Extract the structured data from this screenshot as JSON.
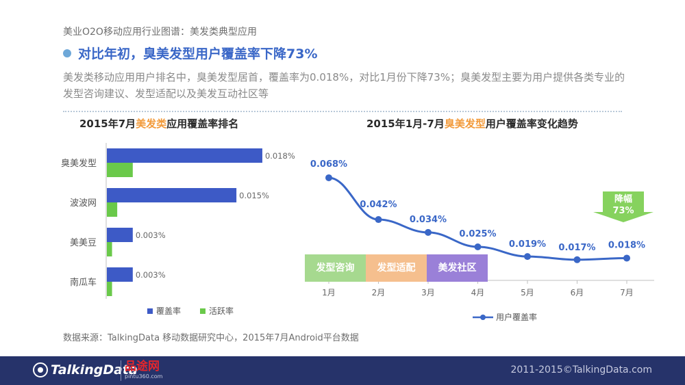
{
  "breadcrumb": "美业O2O移动应用行业图谱：美发类典型应用",
  "headline": "对比年初，臭美发型用户覆盖率下降73%",
  "description": "美发类移动应用用户排名中，臭美发型居首，覆盖率为0.018%，对比1月份下降73%；臭美发型主要为用户提供各类专业的发型咨询建议、发型适配以及美发互动社区等",
  "left_title": {
    "prefix": "2015年7月",
    "highlight": "美发类",
    "suffix": "应用覆盖率排名"
  },
  "right_title": {
    "prefix": "2015年1月-7月",
    "highlight": "臭美发型",
    "suffix": "用户覆盖率变化趋势"
  },
  "colors": {
    "coverage": "#3d5ac6",
    "activity": "#6ac94a",
    "line": "#3a67c7",
    "highlight": "#f29a3a"
  },
  "chart_data": [
    {
      "type": "bar",
      "orientation": "horizontal",
      "title": "2015年7月美发类应用覆盖率排名",
      "categories": [
        "臭美发型",
        "波波网",
        "美美豆",
        "南瓜车"
      ],
      "series": [
        {
          "name": "覆盖率",
          "values": [
            0.018,
            0.015,
            0.003,
            0.003
          ],
          "labels": [
            "0.018%",
            "0.015%",
            "0.003%",
            "0.003%"
          ]
        },
        {
          "name": "活跃率",
          "values": [
            0.003,
            0.0012,
            0.0006,
            0.0006
          ]
        }
      ],
      "xlim": [
        0,
        0.023
      ],
      "legend": "bottom"
    },
    {
      "type": "line",
      "title": "2015年1月-7月臭美发型用户覆盖率变化趋势",
      "categories": [
        "1月",
        "2月",
        "3月",
        "4月",
        "5月",
        "6月",
        "7月"
      ],
      "series": [
        {
          "name": "用户覆盖率",
          "values": [
            0.068,
            0.042,
            0.034,
            0.025,
            0.019,
            0.017,
            0.018
          ],
          "labels": [
            "0.068%",
            "0.042%",
            "0.034%",
            "0.025%",
            "0.019%",
            "0.017%",
            "0.018%"
          ]
        }
      ],
      "ylim": [
        0.005,
        0.085
      ],
      "legend": "bottom"
    }
  ],
  "feature_tags": [
    {
      "label": "发型咨询",
      "color": "#a6d98f"
    },
    {
      "label": "发型适配",
      "color": "#f5bf8e"
    },
    {
      "label": "美发社区",
      "color": "#9a80d8"
    }
  ],
  "decline_badge": {
    "line1": "降幅",
    "line2": "73%",
    "color": "#86d25e"
  },
  "bar_legend": [
    "覆盖率",
    "活跃率"
  ],
  "line_legend": "用户覆盖率",
  "source": "数据来源：TalkingData 移动数据研究中心，2015年7月Android平台数据",
  "footer": {
    "logo": "TalkingData",
    "partner_name": "品途网",
    "partner_url": "pintu360.com",
    "copyright": "2011-2015©TalkingData.com"
  }
}
